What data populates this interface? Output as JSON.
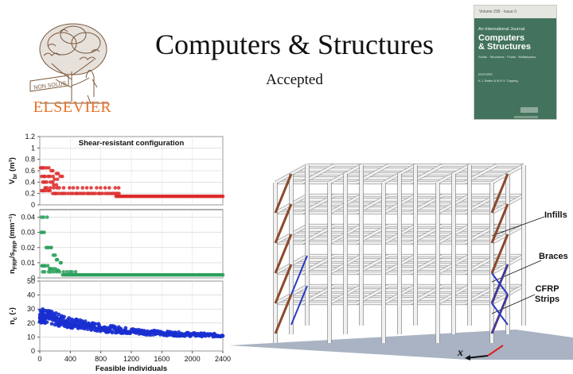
{
  "header": {
    "title": "Computers & Structures",
    "subtitle": "Accepted",
    "publisher_logo": {
      "name": "elsevier-tree-logo",
      "ribbon_text": "NON SOLUS",
      "wordmark": "ELSEVIER",
      "wordmark_color": "#e8722a"
    }
  },
  "cover": {
    "strip_text": "Volume 239 · Issue 0",
    "small_text": "An International Journal",
    "title_line1": "Computers",
    "title_line2": "& Structures",
    "subtitle": "Solids · Structures · Fluids · Multiphysics",
    "editors_label": "EDITORS",
    "editor_names": "K.J. Bathe  &  B.H.V. Topping",
    "background_color": "#43735c"
  },
  "frame_illustration": {
    "labels": {
      "infills": "Infills",
      "braces": "Braces",
      "cfrp_line1": "CFRP",
      "cfrp_line2": "Strips",
      "axis_x": "x"
    },
    "colors": {
      "members": "#f1f1f1",
      "infill": "#8b4a2b",
      "brace": "#2a3ac0",
      "ground": "#a9b3c3",
      "axis_red": "#e02020"
    }
  },
  "chart_data": [
    {
      "type": "scatter",
      "title": "Shear-resistant configuration",
      "ylabel": "V_br (m³)",
      "ylabel_main": "V",
      "ylabel_sub": "br",
      "ylabel_tail": " (m³)",
      "xlim": [
        0,
        2400
      ],
      "ylim": [
        0,
        1.2
      ],
      "yticks": [
        "0",
        "0.2",
        "0.4",
        "0.6",
        "0.8",
        "1",
        "1.2"
      ],
      "ytick_values": [
        0,
        0.2,
        0.4,
        0.6,
        0.8,
        1.0,
        1.2
      ],
      "color": "#dc2828",
      "grid": true,
      "series": [
        {
          "x": [
            10,
            30,
            60,
            90,
            120,
            150,
            180,
            210,
            240,
            270,
            300,
            20,
            50,
            80,
            110,
            140,
            170,
            200,
            230,
            40,
            70,
            100,
            130,
            160,
            190,
            220,
            60,
            100,
            140,
            180,
            220,
            260,
            320,
            380,
            440,
            500,
            560,
            620,
            680,
            740,
            800,
            860,
            920,
            980,
            1040,
            15,
            45,
            75,
            105,
            135,
            165,
            195,
            225,
            255,
            285,
            315,
            345,
            375,
            405,
            435,
            465,
            495,
            525,
            555,
            585,
            615,
            645,
            675,
            705,
            735,
            765,
            795,
            825,
            855,
            885,
            915,
            945,
            975,
            1005,
            1035
          ],
          "y": [
            0.65,
            0.65,
            0.65,
            0.65,
            0.65,
            0.6,
            0.6,
            0.55,
            0.55,
            0.5,
            0.5,
            0.5,
            0.5,
            0.5,
            0.5,
            0.5,
            0.5,
            0.45,
            0.45,
            0.4,
            0.4,
            0.4,
            0.4,
            0.4,
            0.35,
            0.35,
            0.3,
            0.3,
            0.3,
            0.3,
            0.3,
            0.3,
            0.3,
            0.3,
            0.3,
            0.3,
            0.3,
            0.3,
            0.3,
            0.3,
            0.3,
            0.3,
            0.3,
            0.3,
            0.3,
            0.25,
            0.25,
            0.25,
            0.25,
            0.25,
            0.2,
            0.2,
            0.2,
            0.2,
            0.2,
            0.2,
            0.2,
            0.2,
            0.2,
            0.2,
            0.2,
            0.2,
            0.2,
            0.2,
            0.2,
            0.2,
            0.2,
            0.2,
            0.2,
            0.2,
            0.2,
            0.2,
            0.2,
            0.2,
            0.2,
            0.2,
            0.2,
            0.2,
            0.2,
            0.2
          ]
        },
        {
          "x_range": [
            1000,
            2400
          ],
          "y_constant": 0.15,
          "count": 70
        }
      ]
    },
    {
      "type": "scatter",
      "ylabel": "n_FRP/s_FRP (mm⁻¹)",
      "ylabel_main": "n",
      "ylabel_sub": "FRP",
      "ylabel_mid": "/s",
      "ylabel_sub2": "FRP",
      "ylabel_tail": " (mm⁻¹)",
      "xlim": [
        0,
        2400
      ],
      "ylim": [
        0,
        0.045
      ],
      "yticks": [
        "0",
        "0.01",
        "0.02",
        "0.03",
        "0.04"
      ],
      "ytick_values": [
        0,
        0.01,
        0.02,
        0.03,
        0.04
      ],
      "color": "#2aa05a",
      "grid": true,
      "series": [
        {
          "x": [
            20,
            60,
            100,
            20,
            40,
            60,
            80,
            100,
            120,
            140,
            160,
            180,
            200,
            220,
            240,
            260,
            280,
            20,
            40,
            60,
            80,
            100,
            120,
            140,
            160,
            180,
            200,
            220,
            240,
            30,
            70,
            110,
            150,
            190,
            230,
            270,
            310,
            350,
            390,
            430,
            470
          ],
          "y": [
            0.04,
            0.04,
            0.04,
            0.03,
            0.03,
            0.03,
            0.02,
            0.02,
            0.02,
            0.02,
            0.02,
            0.015,
            0.015,
            0.012,
            0.012,
            0.01,
            0.01,
            0.008,
            0.008,
            0.008,
            0.008,
            0.008,
            0.006,
            0.006,
            0.006,
            0.006,
            0.006,
            0.005,
            0.005,
            0.004,
            0.004,
            0.004,
            0.004,
            0.004,
            0.004,
            0.004,
            0.004,
            0.004,
            0.004,
            0.004,
            0.004
          ]
        },
        {
          "x_range": [
            300,
            2400
          ],
          "y_constant": 0.002,
          "count": 90
        }
      ]
    },
    {
      "type": "scatter",
      "ylabel": "n_c (-)",
      "ylabel_main": "n",
      "ylabel_sub": "c",
      "ylabel_tail": " (-)",
      "xlabel": "Feasible individuals",
      "xlim": [
        0,
        2400
      ],
      "ylim": [
        0,
        50
      ],
      "yticks": [
        "0",
        "10",
        "20",
        "30",
        "40",
        "50"
      ],
      "ytick_values": [
        0,
        10,
        20,
        30,
        40,
        50
      ],
      "xticks": [
        "0",
        "400",
        "800",
        "1200",
        "1600",
        "2000",
        "2400"
      ],
      "xtick_values": [
        0,
        400,
        800,
        1200,
        1600,
        2000,
        2400
      ],
      "color": "#1a2fd0",
      "grid": true,
      "series": [
        {
          "trend": "decay",
          "x_range": [
            0,
            2400
          ],
          "y_start": 26,
          "y_end": 10,
          "spread_start": 11,
          "spread_end": 1.5,
          "count": 420
        }
      ]
    }
  ]
}
